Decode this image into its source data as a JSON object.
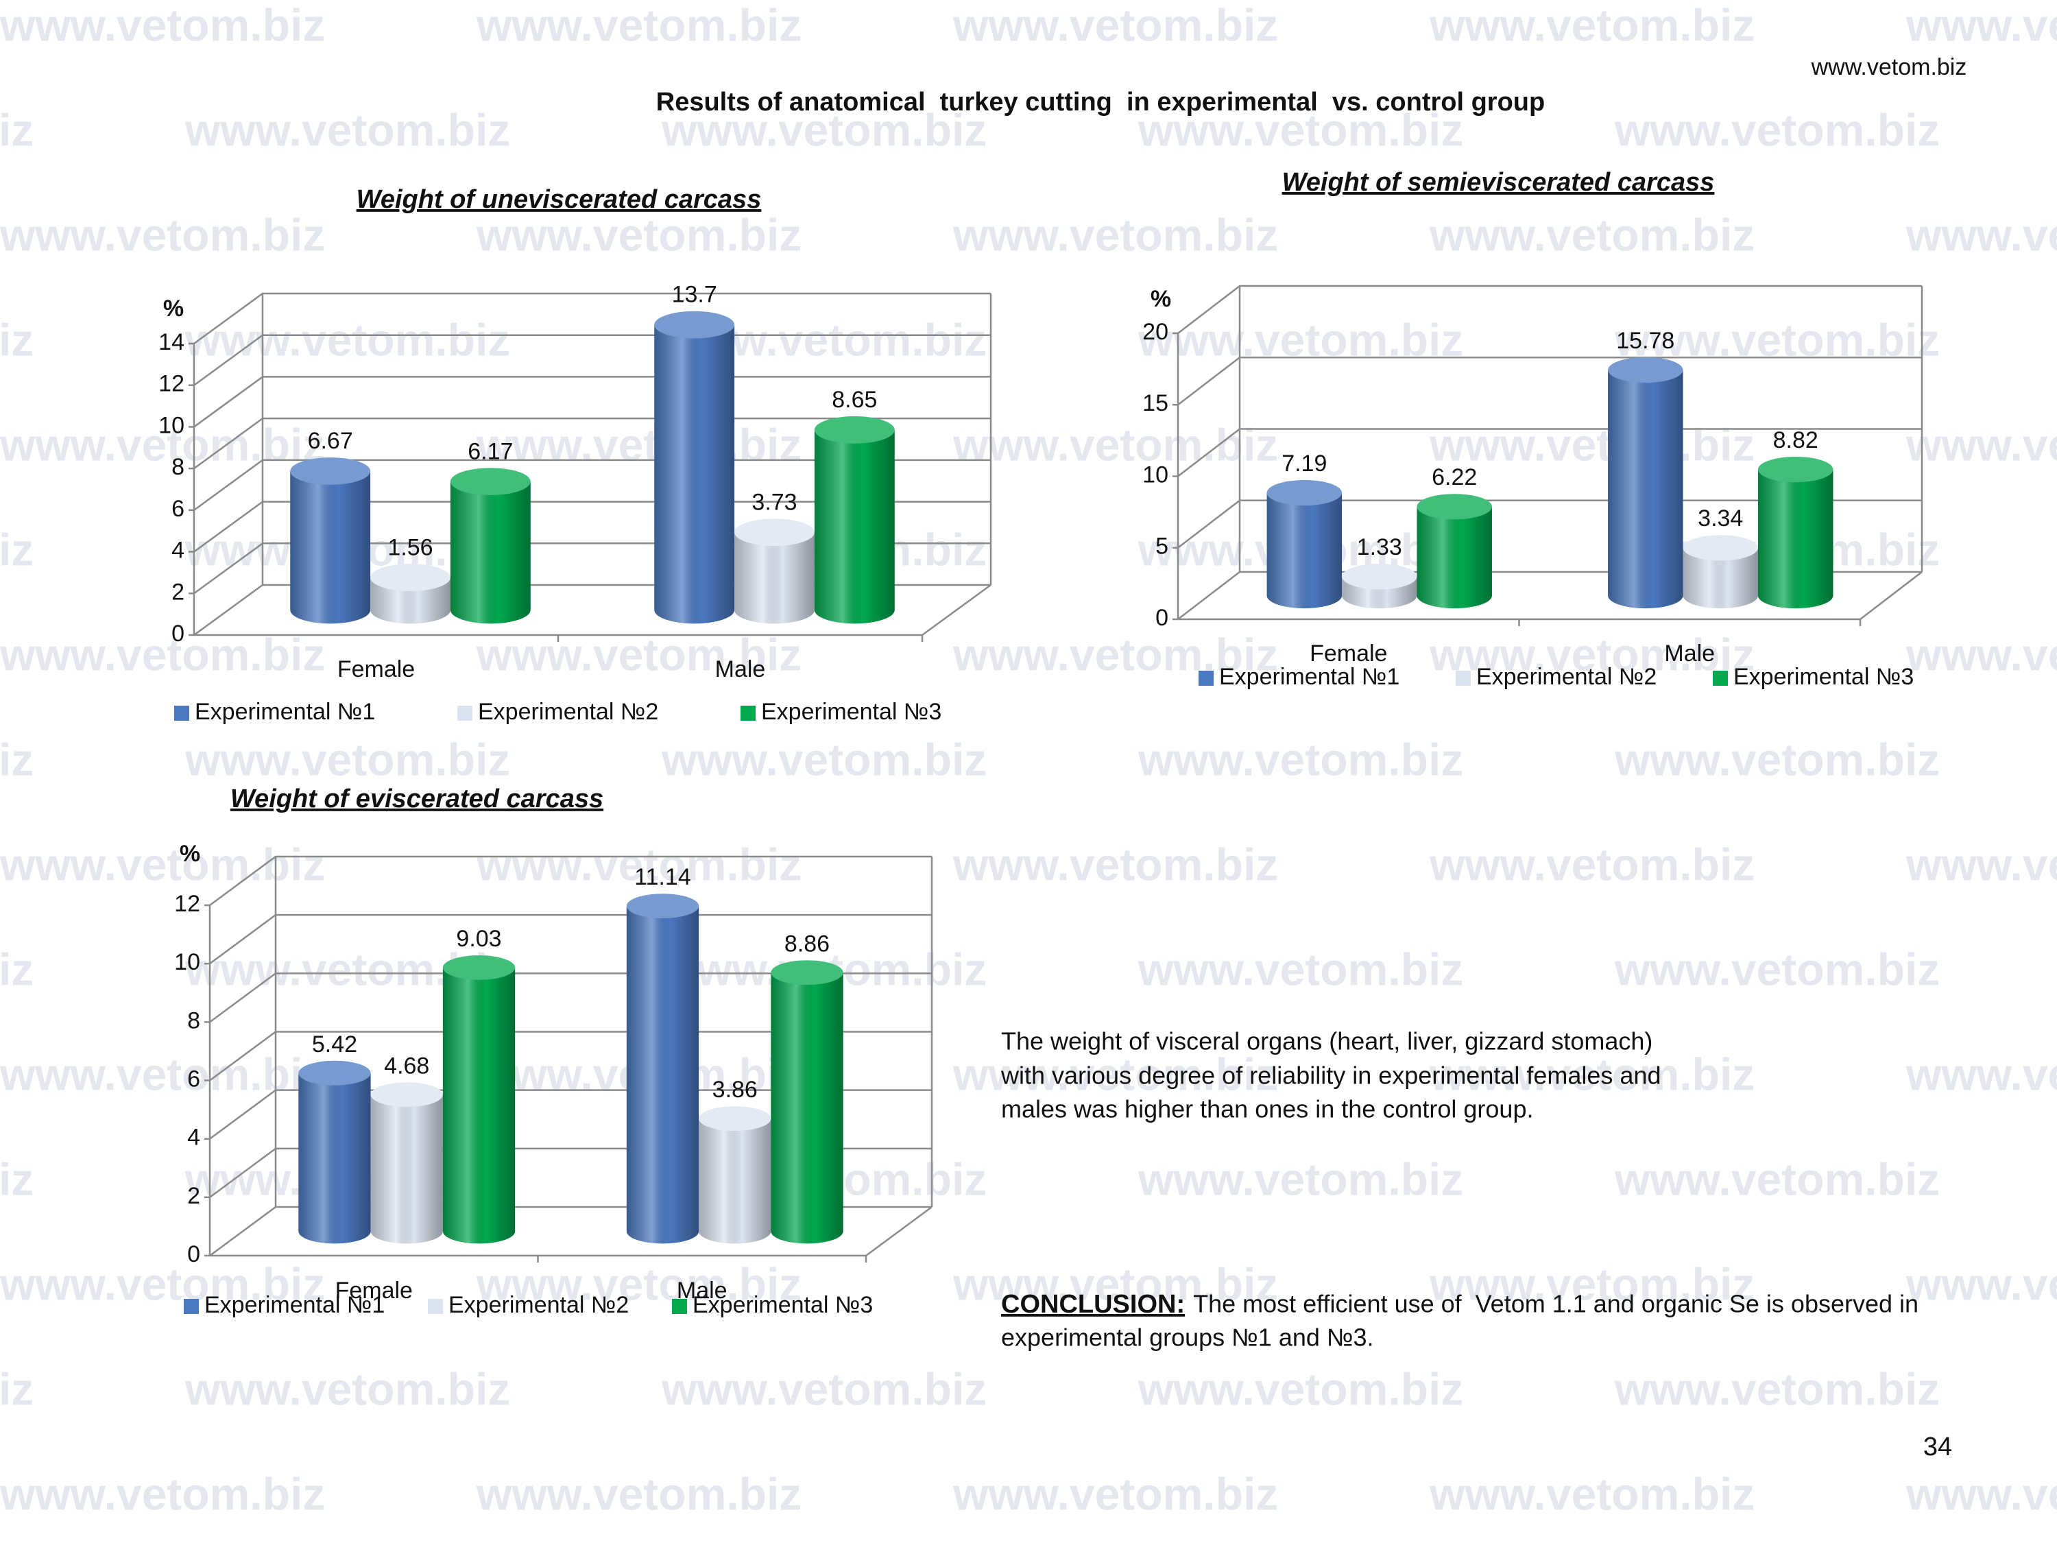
{
  "header": {
    "site": "www.vetom.biz",
    "title": "Results of anatomical  turkey cutting  in experimental  vs. control group"
  },
  "watermark": "www.vetom.biz",
  "chart_data": [
    {
      "type": "bar",
      "title": "Weight of uneviscerated carcass",
      "y_label": "%",
      "categories": [
        "Female",
        "Male"
      ],
      "series": [
        {
          "name": "Experimental №1",
          "color": "#4a78c0",
          "values": [
            6.67,
            13.7
          ]
        },
        {
          "name": "Experimental №2",
          "color": "#dbe3f0",
          "values": [
            1.56,
            3.73
          ]
        },
        {
          "name": "Experimental №3",
          "color": "#00a84e",
          "values": [
            6.17,
            8.65
          ]
        }
      ],
      "ylim": [
        0,
        14
      ],
      "yticks": [
        0,
        2,
        4,
        6,
        8,
        10,
        12,
        14
      ],
      "grid": true
    },
    {
      "type": "bar",
      "title": "Weight of semieviscerated carcass",
      "y_label": "%",
      "categories": [
        "Female",
        "Male"
      ],
      "series": [
        {
          "name": "Experimental №1",
          "color": "#4a78c0",
          "values": [
            7.19,
            15.78
          ]
        },
        {
          "name": "Experimental №2",
          "color": "#dbe3f0",
          "values": [
            1.33,
            3.34
          ]
        },
        {
          "name": "Experimental №3",
          "color": "#00a84e",
          "values": [
            6.22,
            8.82
          ]
        }
      ],
      "ylim": [
        0,
        20
      ],
      "yticks": [
        0,
        5,
        10,
        15,
        20
      ],
      "grid": true
    },
    {
      "type": "bar",
      "title": "Weight of eviscerated carcass",
      "y_label": "%",
      "categories": [
        "Female",
        "Male"
      ],
      "series": [
        {
          "name": "Experimental №1",
          "color": "#4a78c0",
          "values": [
            5.42,
            11.14
          ]
        },
        {
          "name": "Experimental №2",
          "color": "#dbe3f0",
          "values": [
            4.68,
            3.86
          ]
        },
        {
          "name": "Experimental №3",
          "color": "#00a84e",
          "values": [
            9.03,
            8.86
          ]
        }
      ],
      "ylim": [
        0,
        12
      ],
      "yticks": [
        0,
        2,
        4,
        6,
        8,
        10,
        12
      ],
      "grid": true
    }
  ],
  "note": [
    "The weight of visceral organs (heart, liver, gizzard stomach)",
    "with various degree of reliability in experimental females and",
    "males was higher than ones in the control group."
  ],
  "conclusion": {
    "label": "CONCLUSION:",
    "text": [
      "The most efficient use of  Vetom 1.1 and organic Se is observed in",
      "experimental groups №1 and №3."
    ]
  },
  "page_number": "34"
}
